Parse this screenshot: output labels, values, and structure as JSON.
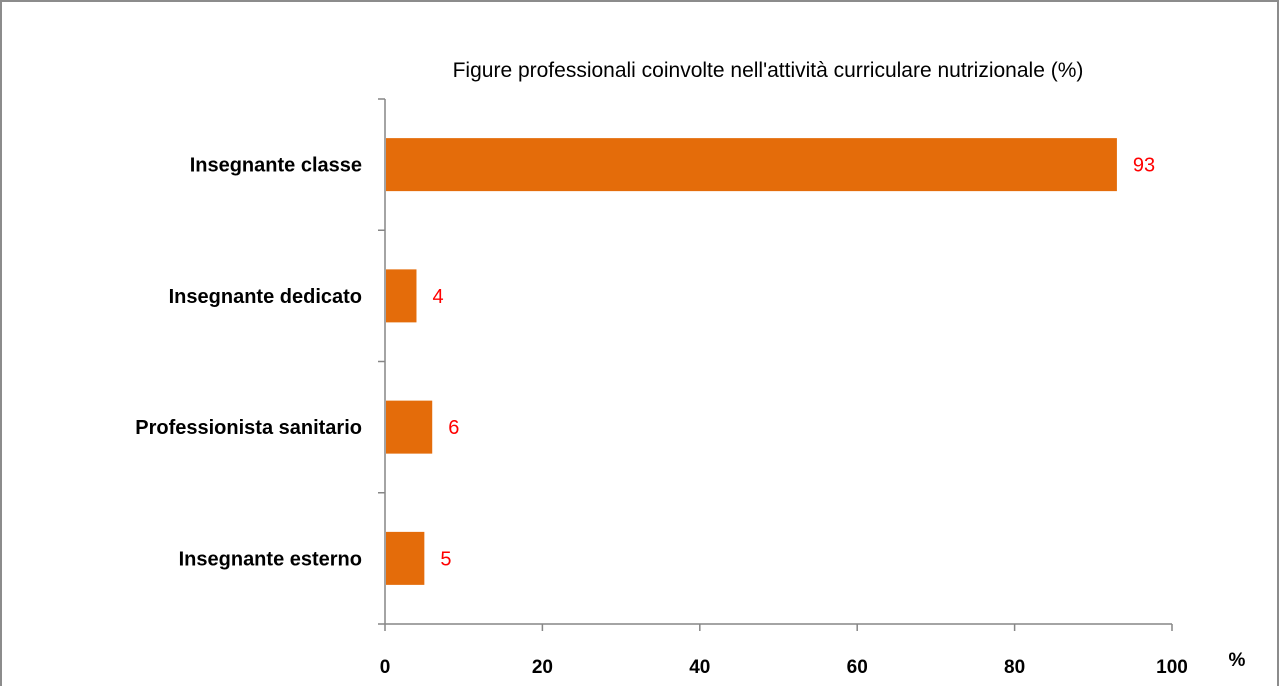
{
  "chart_data": {
    "type": "bar",
    "orientation": "horizontal",
    "title": "Figure professionali coinvolte nell'attività curriculare nutrizionale (%)",
    "categories": [
      "Insegnante classe",
      "Insegnante dedicato",
      "Professionista sanitario",
      "Insegnante esterno"
    ],
    "values": [
      93,
      4,
      6,
      5
    ],
    "data_labels": [
      "93",
      "4",
      "6",
      "5"
    ],
    "xlim": [
      0,
      100
    ],
    "x_ticks": [
      "0",
      "20",
      "40",
      "60",
      "80",
      "100"
    ],
    "x_unit": "%",
    "grid": false,
    "legend": "none",
    "colors": {
      "bar": "#E46C0A",
      "data_label": "#FF0000",
      "axis": "#868686",
      "frame": "#8C8C8C"
    }
  }
}
